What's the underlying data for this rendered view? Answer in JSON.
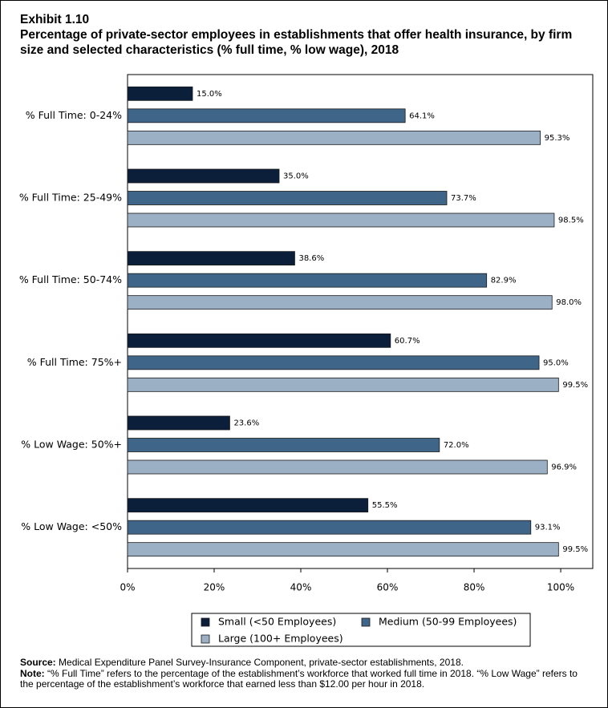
{
  "chart_data": {
    "type": "hbar",
    "exhibit": "Exhibit 1.10",
    "title": "Percentage of private-sector employees in establishments that offer health insurance, by firm size and selected characteristics (% full time, % low wage), 2018",
    "categories": [
      "% Full Time: 0-24%",
      "% Full Time: 25-49%",
      "% Full Time: 50-74%",
      "% Full Time: 75%+",
      "% Low Wage: 50%+",
      "% Low Wage: <50%"
    ],
    "series": [
      {
        "name": "Small (<50 Employees)",
        "color": "#0b1f3a",
        "values": [
          15.0,
          35.0,
          38.6,
          60.7,
          23.6,
          55.5
        ],
        "value_labels": [
          "15.0%",
          "35.0%",
          "38.6%",
          "60.7%",
          "23.6%",
          "55.5%"
        ]
      },
      {
        "name": "Medium (50-99 Employees)",
        "color": "#3f6589",
        "values": [
          64.1,
          73.7,
          82.9,
          95.0,
          72.0,
          93.1
        ],
        "value_labels": [
          "64.1%",
          "73.7%",
          "82.9%",
          "95.0%",
          "72.0%",
          "93.1%"
        ]
      },
      {
        "name": "Large (100+ Employees)",
        "color": "#9cb0c5",
        "values": [
          95.3,
          98.5,
          98.0,
          99.5,
          96.9,
          99.5
        ],
        "value_labels": [
          "95.3%",
          "98.5%",
          "98.0%",
          "99.5%",
          "96.9%",
          "99.5%"
        ]
      }
    ],
    "xlim": [
      0,
      107.4
    ],
    "xticks": [
      {
        "value": 0,
        "label": "0%"
      },
      {
        "value": 20,
        "label": "20%"
      },
      {
        "value": 40,
        "label": "40%"
      },
      {
        "value": 60,
        "label": "60%"
      },
      {
        "value": 80,
        "label": "80%"
      },
      {
        "value": 100,
        "label": "100%"
      }
    ],
    "source_label": "Source:",
    "source_text": "Medical Expenditure Panel Survey-Insurance Component, private-sector establishments, 2018.",
    "note_label": "Note:",
    "note_text": "“% Full Time” refers to the percentage of the establishment’s workforce that worked full time in 2018. “% Low Wage” refers to the percentage of the establishment’s workforce that earned less than $12.00 per hour in 2018."
  }
}
